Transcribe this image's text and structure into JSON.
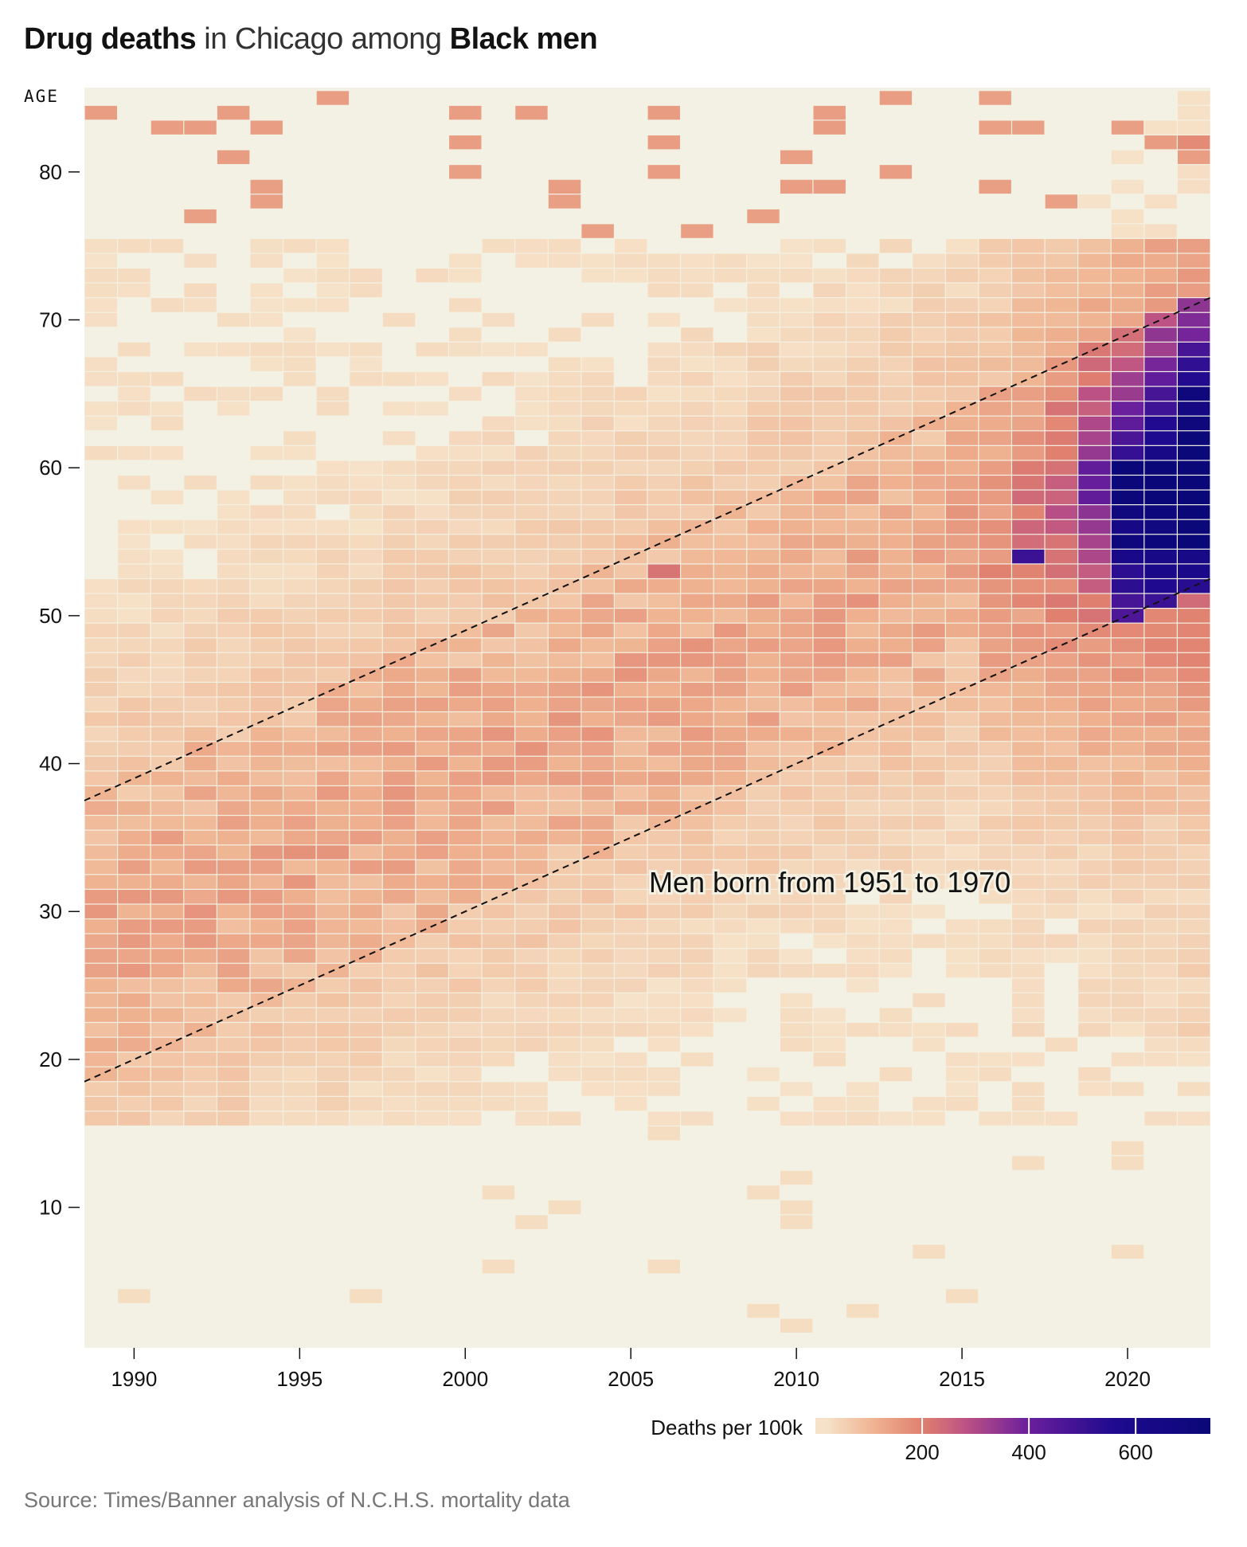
{
  "title": {
    "part1_bold": "Drug deaths",
    "part2": " in Chicago among ",
    "part3_bold": "Black men"
  },
  "source": "Source: Times/Banner analysis of N.C.H.S. mortality data",
  "colors": {
    "background": "#f3f1e4",
    "scale_stops": [
      "#f6e2c8",
      "#efb391",
      "#e0806f",
      "#b84e86",
      "#6a1f9c",
      "#1f0a8f",
      "#0a0878"
    ]
  },
  "chart_data": {
    "type": "heatmap",
    "title": "",
    "xlabel": "",
    "ylabel": "AGE",
    "x_range": [
      1989,
      2022
    ],
    "y_range": [
      1,
      85
    ],
    "x_ticks": [
      1990,
      1995,
      2000,
      2005,
      2010,
      2015,
      2020
    ],
    "y_ticks": [
      10,
      20,
      30,
      40,
      50,
      60,
      70,
      80
    ],
    "value_label": "Deaths per 100k",
    "legend_ticks": [
      200,
      400,
      600
    ],
    "legend_max": 740,
    "annotation": "Men born from 1951 to 1970",
    "cohort_lines": [
      {
        "birth_year": 1951,
        "from_year": 1988.5,
        "to_year": 2022.5
      },
      {
        "birth_year": 1970,
        "from_year": 1988.5,
        "to_year": 2022.5
      }
    ],
    "cell_model": {
      "description": "Death rate per 100k by year (x) and age (y); concentrated among the 1951-1970 birth cohort, rising sharply after 2015.",
      "peak_cells": [
        {
          "year": 2020,
          "age": 55,
          "value": 700
        },
        {
          "year": 2021,
          "age": 55,
          "value": 720
        },
        {
          "year": 2022,
          "age": 55,
          "value": 740
        },
        {
          "year": 2022,
          "age": 65,
          "value": 700
        },
        {
          "year": 2019,
          "age": 60,
          "value": 420
        },
        {
          "year": 2017,
          "age": 54,
          "value": 500
        },
        {
          "year": 2006,
          "age": 53,
          "value": 220
        },
        {
          "year": 2011,
          "age": 83,
          "value": 150
        },
        {
          "year": 2022,
          "age": 82,
          "value": 180
        }
      ]
    }
  }
}
